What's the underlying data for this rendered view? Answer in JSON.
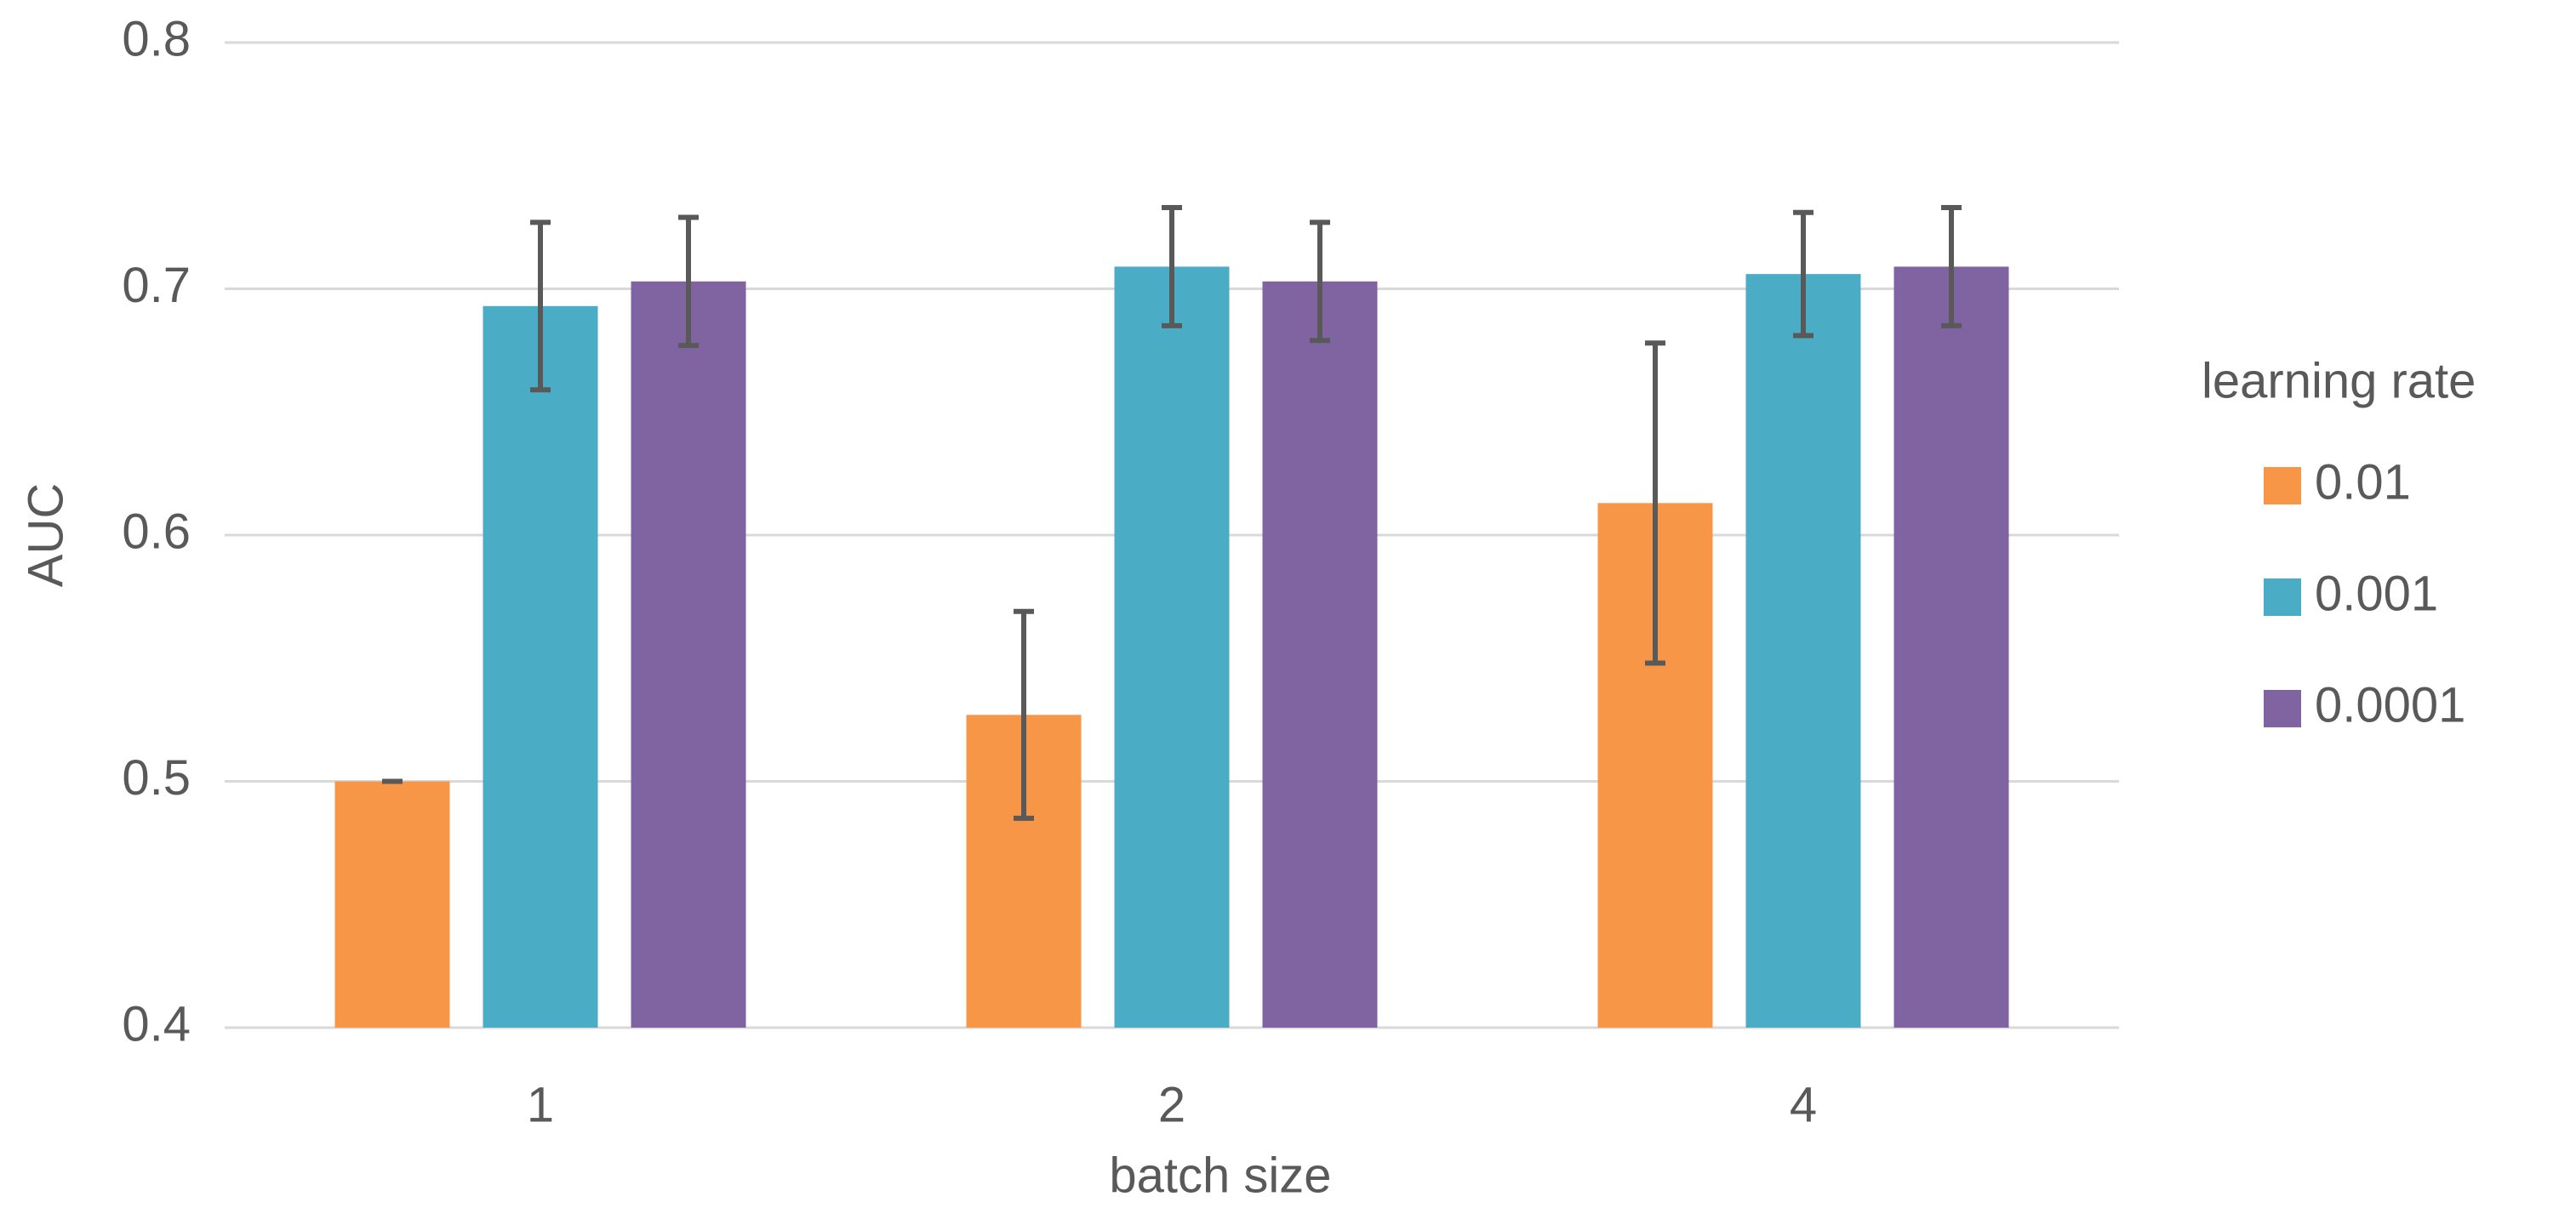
{
  "chart_data": {
    "type": "bar",
    "x_label": "batch size",
    "y_label": "AUC",
    "categories": [
      "1",
      "2",
      "4"
    ],
    "legend_title": "learning rate",
    "legend": "right",
    "series": [
      {
        "name": "0.01",
        "color": "#f79646",
        "values": [
          0.5,
          0.527,
          0.613
        ],
        "errors": [
          0,
          0.042,
          0.065
        ]
      },
      {
        "name": "0.001",
        "color": "#4bacc6",
        "values": [
          0.693,
          0.709,
          0.706
        ],
        "errors": [
          0.034,
          0.024,
          0.025
        ]
      },
      {
        "name": "0.0001",
        "color": "#8064a2",
        "values": [
          0.703,
          0.703,
          0.709
        ],
        "errors": [
          0.026,
          0.024,
          0.024
        ]
      }
    ],
    "ylim": [
      0.4,
      0.8
    ],
    "yticks": [
      0.4,
      0.5,
      0.6,
      0.7,
      0.8
    ],
    "grid": true
  }
}
